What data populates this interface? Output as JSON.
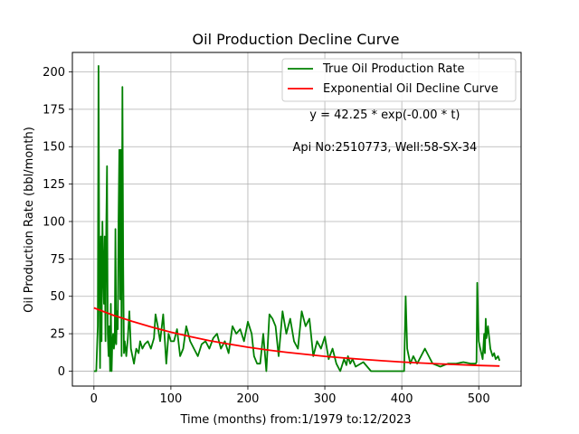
{
  "chart_data": {
    "type": "line",
    "title": "Oil Production Decline Curve",
    "xlabel": "Time (months) from:1/1979 to:12/2023",
    "ylabel": "Oil Production Rate (bbl/month)",
    "xlim": [
      -28,
      555
    ],
    "ylim": [
      -10,
      213
    ],
    "xticks": [
      0,
      100,
      200,
      300,
      400,
      500
    ],
    "yticks": [
      0,
      25,
      50,
      75,
      100,
      125,
      150,
      175,
      200
    ],
    "grid": true,
    "legend_position": "top-right",
    "annotations": [
      {
        "text": "y = 42.25 * exp(-0.00 * t)",
        "x": 378,
        "y": 169
      },
      {
        "text": "Api No:2510773, Well:58-SX-34",
        "x": 378,
        "y": 147
      }
    ],
    "series": [
      {
        "name": "True Oil Production Rate",
        "color": "#008000",
        "x": [
          0,
          3,
          5,
          6,
          7,
          8,
          9,
          10,
          11,
          12,
          13,
          14,
          15,
          16,
          17,
          18,
          19,
          20,
          21,
          22,
          23,
          24,
          25,
          26,
          27,
          28,
          29,
          30,
          31,
          32,
          33,
          34,
          35,
          36,
          37,
          38,
          39,
          40,
          42,
          44,
          46,
          48,
          50,
          52,
          55,
          58,
          60,
          63,
          66,
          70,
          74,
          78,
          80,
          83,
          86,
          90,
          94,
          97,
          100,
          104,
          108,
          112,
          116,
          120,
          125,
          130,
          135,
          140,
          145,
          150,
          155,
          160,
          165,
          170,
          175,
          180,
          185,
          190,
          195,
          200,
          205,
          208,
          212,
          216,
          220,
          224,
          228,
          232,
          236,
          240,
          245,
          250,
          255,
          260,
          265,
          270,
          275,
          280,
          285,
          290,
          295,
          300,
          305,
          310,
          315,
          320,
          325,
          328,
          330,
          333,
          336,
          340,
          350,
          360,
          370,
          380,
          390,
          400,
          403,
          405,
          407,
          409,
          411,
          415,
          420,
          425,
          430,
          435,
          440,
          445,
          450,
          460,
          470,
          480,
          490,
          495,
          496,
          497,
          498,
          500,
          502,
          505,
          507,
          508,
          509,
          510,
          512,
          515,
          518,
          520,
          522,
          525,
          527
        ],
        "y": [
          0,
          0,
          30,
          204,
          60,
          2,
          90,
          20,
          100,
          70,
          45,
          90,
          20,
          93,
          137,
          25,
          10,
          30,
          0,
          45,
          0,
          20,
          25,
          15,
          20,
          95,
          18,
          40,
          28,
          100,
          148,
          48,
          148,
          10,
          190,
          70,
          12,
          20,
          10,
          22,
          40,
          15,
          10,
          5,
          15,
          12,
          20,
          15,
          18,
          20,
          15,
          22,
          38,
          30,
          20,
          38,
          5,
          25,
          20,
          20,
          28,
          10,
          15,
          30,
          20,
          15,
          10,
          18,
          20,
          15,
          22,
          25,
          15,
          20,
          12,
          30,
          25,
          28,
          20,
          33,
          25,
          10,
          5,
          5,
          25,
          0,
          38,
          35,
          30,
          10,
          40,
          25,
          35,
          20,
          15,
          40,
          30,
          35,
          10,
          20,
          15,
          23,
          8,
          15,
          5,
          0,
          8,
          4,
          10,
          5,
          8,
          3,
          6,
          0,
          0,
          0,
          0,
          0,
          0,
          50,
          15,
          10,
          5,
          10,
          5,
          10,
          15,
          10,
          5,
          4,
          3,
          5,
          5,
          6,
          5,
          5,
          5,
          6,
          59,
          20,
          15,
          8,
          25,
          12,
          35,
          22,
          30,
          15,
          10,
          12,
          8,
          10,
          7
        ]
      },
      {
        "name": "Exponential Oil Decline Curve",
        "color": "#ff0000",
        "x": [
          0,
          25,
          50,
          75,
          100,
          125,
          150,
          175,
          200,
          225,
          250,
          275,
          300,
          325,
          350,
          375,
          400,
          425,
          450,
          475,
          500,
          527
        ],
        "y": [
          42.25,
          37.4,
          33.2,
          29.4,
          26.0,
          23.1,
          20.4,
          18.1,
          16.0,
          14.2,
          12.6,
          11.2,
          9.9,
          8.8,
          7.8,
          6.9,
          6.1,
          5.4,
          4.8,
          4.3,
          3.8,
          3.4
        ]
      }
    ]
  }
}
